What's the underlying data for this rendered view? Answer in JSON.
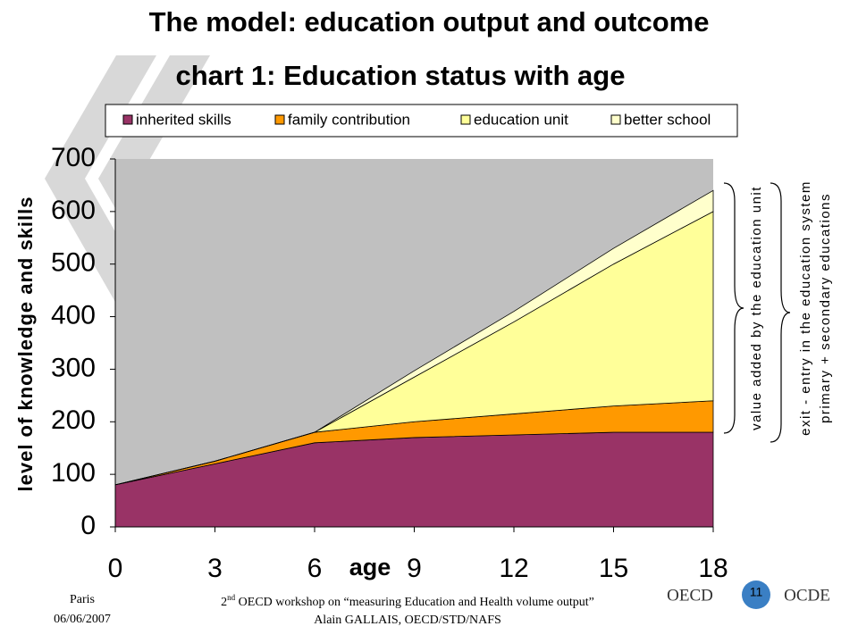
{
  "slide_title": "The model: education output and outcome",
  "chart_data": {
    "type": "stacked_area",
    "title": "chart 1: Education status with age",
    "x_label": "age",
    "y_label": "level of knowledge and skills",
    "x": [
      0,
      3,
      6,
      9,
      12,
      15,
      18
    ],
    "series": [
      {
        "name": "inherited skills",
        "color": "#993366",
        "values": [
          80,
          120,
          160,
          170,
          175,
          180,
          180
        ]
      },
      {
        "name": "family contribution",
        "color": "#ff9900",
        "values": [
          0,
          5,
          20,
          30,
          40,
          50,
          60
        ]
      },
      {
        "name": "education unit",
        "color": "#ffff99",
        "values": [
          0,
          0,
          0,
          85,
          175,
          270,
          360
        ]
      },
      {
        "name": "better school",
        "color": "#ffffcc",
        "values": [
          0,
          0,
          0,
          12,
          20,
          30,
          40
        ]
      }
    ],
    "xlim": [
      0,
      18
    ],
    "xticks": [
      0,
      3,
      6,
      9,
      12,
      15,
      18
    ],
    "ylim": [
      0,
      700
    ],
    "yticks": [
      0,
      100,
      200,
      300,
      400,
      500,
      600,
      700
    ],
    "plot_background": "#c0c0c0",
    "grid": false,
    "annotations": [
      "value added by the education unit",
      "exit - entry in the education system",
      "primary + secondary educations"
    ]
  },
  "footer": {
    "place": "Paris",
    "date": "06/06/2007",
    "workshop_number": "2",
    "workshop_suffix": "nd",
    "workshop_text": " OECD workshop on “measuring Education and Health volume output”",
    "author": "Alain GALLAIS, OECD/STD/NAFS",
    "logo_left": "OECD",
    "logo_right": "OCDE",
    "page": "11"
  }
}
